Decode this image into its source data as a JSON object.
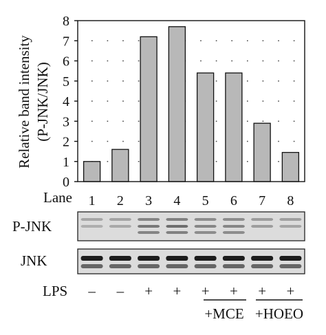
{
  "chart_data": {
    "type": "bar",
    "ylabel_line1": "Relative band intensity",
    "ylabel_line2": "(P-JNK/JNK)",
    "ylim": [
      0,
      8
    ],
    "yticks": [
      0,
      1,
      2,
      3,
      4,
      5,
      6,
      7,
      8
    ],
    "grid": "dotted horizontal",
    "categories": [
      "1",
      "2",
      "3",
      "4",
      "5",
      "6",
      "7",
      "8"
    ],
    "values": [
      1.0,
      1.6,
      7.2,
      7.7,
      5.4,
      5.4,
      2.9,
      1.45
    ],
    "bar_color": "#b8b8b8",
    "lane_label": "Lane",
    "blots": [
      {
        "label": "P-JNK"
      },
      {
        "label": "JNK"
      }
    ],
    "lps_label": "LPS",
    "lps_signs": [
      "–",
      "–",
      "+",
      "+",
      "+",
      "+",
      "+",
      "+"
    ],
    "treatments": [
      {
        "label": "+MCE",
        "lanes": [
          5,
          6
        ]
      },
      {
        "label": "+HOEO",
        "lanes": [
          7,
          8
        ]
      }
    ]
  }
}
